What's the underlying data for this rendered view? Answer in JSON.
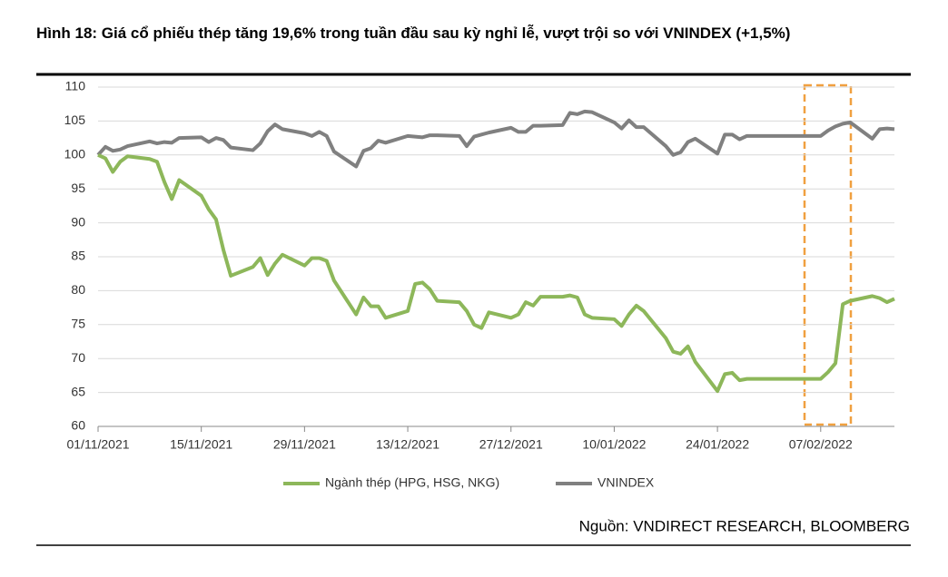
{
  "chart_data": {
    "type": "line",
    "title": "Hình 18: Giá cổ phiếu thép tăng 19,6% trong tuần đầu sau kỳ nghỉ lễ, vượt trội so với VNINDEX (+1,5%)",
    "source": "Nguồn: VNDIRECT RESEARCH, BLOOMBERG",
    "x": [
      "01/11/2021",
      "02/11/2021",
      "03/11/2021",
      "04/11/2021",
      "05/11/2021",
      "08/11/2021",
      "09/11/2021",
      "10/11/2021",
      "11/11/2021",
      "12/11/2021",
      "15/11/2021",
      "16/11/2021",
      "17/11/2021",
      "18/11/2021",
      "19/11/2021",
      "22/11/2021",
      "23/11/2021",
      "24/11/2021",
      "25/11/2021",
      "26/11/2021",
      "29/11/2021",
      "30/11/2021",
      "01/12/2021",
      "02/12/2021",
      "03/12/2021",
      "06/12/2021",
      "07/12/2021",
      "08/12/2021",
      "09/12/2021",
      "10/12/2021",
      "13/12/2021",
      "14/12/2021",
      "15/12/2021",
      "16/12/2021",
      "17/12/2021",
      "20/12/2021",
      "21/12/2021",
      "22/12/2021",
      "23/12/2021",
      "24/12/2021",
      "27/12/2021",
      "28/12/2021",
      "29/12/2021",
      "30/12/2021",
      "31/12/2021",
      "03/01/2022",
      "04/01/2022",
      "05/01/2022",
      "06/01/2022",
      "07/01/2022",
      "10/01/2022",
      "11/01/2022",
      "12/01/2022",
      "13/01/2022",
      "14/01/2022",
      "17/01/2022",
      "18/01/2022",
      "19/01/2022",
      "20/01/2022",
      "21/01/2022",
      "24/01/2022",
      "25/01/2022",
      "26/01/2022",
      "27/01/2022",
      "28/01/2022",
      "07/02/2022",
      "08/02/2022",
      "09/02/2022",
      "10/02/2022",
      "11/02/2022",
      "14/02/2022",
      "15/02/2022",
      "16/02/2022",
      "17/02/2022"
    ],
    "series": [
      {
        "name": "Ngành thép (HPG, HSG, NKG)",
        "color": "#8db75a",
        "values": [
          100,
          99.5,
          97.5,
          99,
          99.8,
          99.4,
          99,
          96,
          93.5,
          96.3,
          94,
          92,
          90.5,
          86,
          82.2,
          83.5,
          84.8,
          82.3,
          84,
          85.3,
          83.7,
          84.8,
          84.8,
          84.4,
          81.5,
          76.5,
          79,
          77.7,
          77.7,
          76,
          77,
          81,
          81.2,
          80.2,
          78.5,
          78.3,
          77,
          75,
          74.5,
          76.8,
          76,
          76.5,
          78.3,
          77.8,
          79.1,
          79.1,
          79.3,
          79,
          76.5,
          76,
          75.8,
          74.8,
          76.5,
          77.8,
          77,
          73,
          71,
          70.7,
          71.8,
          69.5,
          65.2,
          67.7,
          67.9,
          66.8,
          67,
          67,
          68,
          69.3,
          78,
          78.5,
          79.2,
          78.9,
          78.3,
          78.8
        ]
      },
      {
        "name": "VNINDEX",
        "color": "#808080",
        "values": [
          100,
          101.2,
          100.6,
          100.8,
          101.3,
          102,
          101.7,
          101.9,
          101.8,
          102.5,
          102.6,
          101.9,
          102.5,
          102.2,
          101.1,
          100.7,
          101.7,
          103.5,
          104.5,
          103.8,
          103.2,
          102.8,
          103.4,
          102.8,
          100.5,
          98.3,
          100.6,
          101,
          102.1,
          101.8,
          102.8,
          102.7,
          102.6,
          102.9,
          102.9,
          102.8,
          101.3,
          102.7,
          103,
          103.3,
          104,
          103.4,
          103.4,
          104.3,
          104.3,
          104.4,
          106.2,
          106,
          106.4,
          106.3,
          104.8,
          103.9,
          105.1,
          104.1,
          104.1,
          101.3,
          100,
          100.4,
          101.9,
          102.4,
          100.2,
          103,
          103,
          102.3,
          102.8,
          102.8,
          103.6,
          104.2,
          104.6,
          104.8,
          102.4,
          103.8,
          103.9,
          103.8
        ]
      }
    ],
    "xlim": [
      "01/11/2021",
      "17/02/2022"
    ],
    "xticks": [
      "01/11/2021",
      "15/11/2021",
      "29/11/2021",
      "13/12/2021",
      "27/12/2021",
      "10/01/2022",
      "24/01/2022",
      "07/02/2022"
    ],
    "ylim": [
      60,
      110
    ],
    "yticks": [
      60,
      65,
      70,
      75,
      80,
      85,
      90,
      95,
      100,
      105,
      110
    ],
    "grid": true,
    "legend": "bottom"
  }
}
